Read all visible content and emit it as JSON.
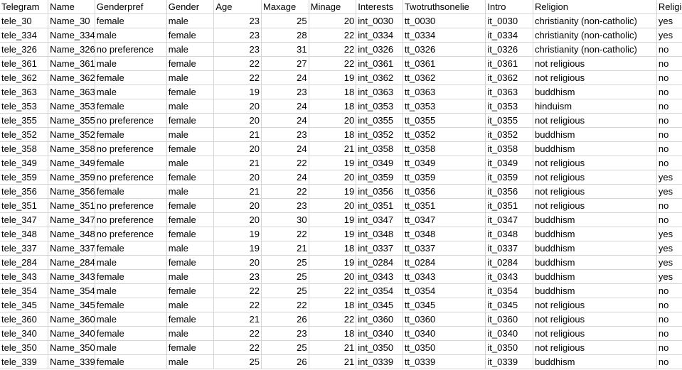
{
  "sheet": {
    "headers": [
      "Telegram",
      "Name",
      "Genderpref",
      "Gender",
      "Age",
      "Maxage",
      "Minage",
      "Interests",
      "Twotruthsonelie",
      "Intro",
      "Religion",
      "Religionqn"
    ],
    "rows": [
      [
        "tele_30",
        "Name_30",
        "female",
        "male",
        "23",
        "25",
        "20",
        "int_0030",
        "tt_0030",
        "it_0030",
        "christianity (non-catholic)",
        "yes"
      ],
      [
        "tele_334",
        "Name_334",
        "male",
        "female",
        "23",
        "28",
        "22",
        "int_0334",
        "tt_0334",
        "it_0334",
        "christianity (non-catholic)",
        "yes"
      ],
      [
        "tele_326",
        "Name_326",
        "no preference",
        "male",
        "23",
        "31",
        "22",
        "int_0326",
        "tt_0326",
        "it_0326",
        "christianity (non-catholic)",
        "no"
      ],
      [
        "tele_361",
        "Name_361",
        "male",
        "female",
        "22",
        "27",
        "22",
        "int_0361",
        "tt_0361",
        "it_0361",
        "not religious",
        "no"
      ],
      [
        "tele_362",
        "Name_362",
        "female",
        "male",
        "22",
        "24",
        "19",
        "int_0362",
        "tt_0362",
        "it_0362",
        "not religious",
        "no"
      ],
      [
        "tele_363",
        "Name_363",
        "male",
        "female",
        "19",
        "23",
        "18",
        "int_0363",
        "tt_0363",
        "it_0363",
        "buddhism",
        "no"
      ],
      [
        "tele_353",
        "Name_353",
        "female",
        "male",
        "20",
        "24",
        "18",
        "int_0353",
        "tt_0353",
        "it_0353",
        "hinduism",
        "no"
      ],
      [
        "tele_355",
        "Name_355",
        "no preference",
        "female",
        "20",
        "24",
        "20",
        "int_0355",
        "tt_0355",
        "it_0355",
        "not religious",
        "no"
      ],
      [
        "tele_352",
        "Name_352",
        "female",
        "male",
        "21",
        "23",
        "18",
        "int_0352",
        "tt_0352",
        "it_0352",
        "buddhism",
        "no"
      ],
      [
        "tele_358",
        "Name_358",
        "no preference",
        "female",
        "20",
        "24",
        "21",
        "int_0358",
        "tt_0358",
        "it_0358",
        "buddhism",
        "no"
      ],
      [
        "tele_349",
        "Name_349",
        "female",
        "male",
        "21",
        "22",
        "19",
        "int_0349",
        "tt_0349",
        "it_0349",
        "not religious",
        "no"
      ],
      [
        "tele_359",
        "Name_359",
        "no preference",
        "female",
        "20",
        "24",
        "20",
        "int_0359",
        "tt_0359",
        "it_0359",
        "not religious",
        "yes"
      ],
      [
        "tele_356",
        "Name_356",
        "female",
        "male",
        "21",
        "22",
        "19",
        "int_0356",
        "tt_0356",
        "it_0356",
        "not religious",
        "yes"
      ],
      [
        "tele_351",
        "Name_351",
        "no preference",
        "female",
        "20",
        "23",
        "20",
        "int_0351",
        "tt_0351",
        "it_0351",
        "not religious",
        "no"
      ],
      [
        "tele_347",
        "Name_347",
        "no preference",
        "female",
        "20",
        "30",
        "19",
        "int_0347",
        "tt_0347",
        "it_0347",
        "buddhism",
        "no"
      ],
      [
        "tele_348",
        "Name_348",
        "no preference",
        "female",
        "19",
        "22",
        "19",
        "int_0348",
        "tt_0348",
        "it_0348",
        "buddhism",
        "yes"
      ],
      [
        "tele_337",
        "Name_337",
        "female",
        "male",
        "19",
        "21",
        "18",
        "int_0337",
        "tt_0337",
        "it_0337",
        "buddhism",
        "yes"
      ],
      [
        "tele_284",
        "Name_284",
        "male",
        "female",
        "20",
        "25",
        "19",
        "int_0284",
        "tt_0284",
        "it_0284",
        "buddhism",
        "yes"
      ],
      [
        "tele_343",
        "Name_343",
        "female",
        "male",
        "23",
        "25",
        "20",
        "int_0343",
        "tt_0343",
        "it_0343",
        "buddhism",
        "yes"
      ],
      [
        "tele_354",
        "Name_354",
        "male",
        "female",
        "22",
        "25",
        "22",
        "int_0354",
        "tt_0354",
        "it_0354",
        "buddhism",
        "no"
      ],
      [
        "tele_345",
        "Name_345",
        "female",
        "male",
        "22",
        "22",
        "18",
        "int_0345",
        "tt_0345",
        "it_0345",
        "not religious",
        "no"
      ],
      [
        "tele_360",
        "Name_360",
        "male",
        "female",
        "21",
        "26",
        "22",
        "int_0360",
        "tt_0360",
        "it_0360",
        "not religious",
        "no"
      ],
      [
        "tele_340",
        "Name_340",
        "female",
        "male",
        "22",
        "23",
        "18",
        "int_0340",
        "tt_0340",
        "it_0340",
        "not religious",
        "no"
      ],
      [
        "tele_350",
        "Name_350",
        "male",
        "female",
        "22",
        "25",
        "21",
        "int_0350",
        "tt_0350",
        "it_0350",
        "not religious",
        "no"
      ],
      [
        "tele_339",
        "Name_339",
        "female",
        "male",
        "25",
        "26",
        "21",
        "int_0339",
        "tt_0339",
        "it_0339",
        "buddhism",
        "no"
      ]
    ]
  }
}
